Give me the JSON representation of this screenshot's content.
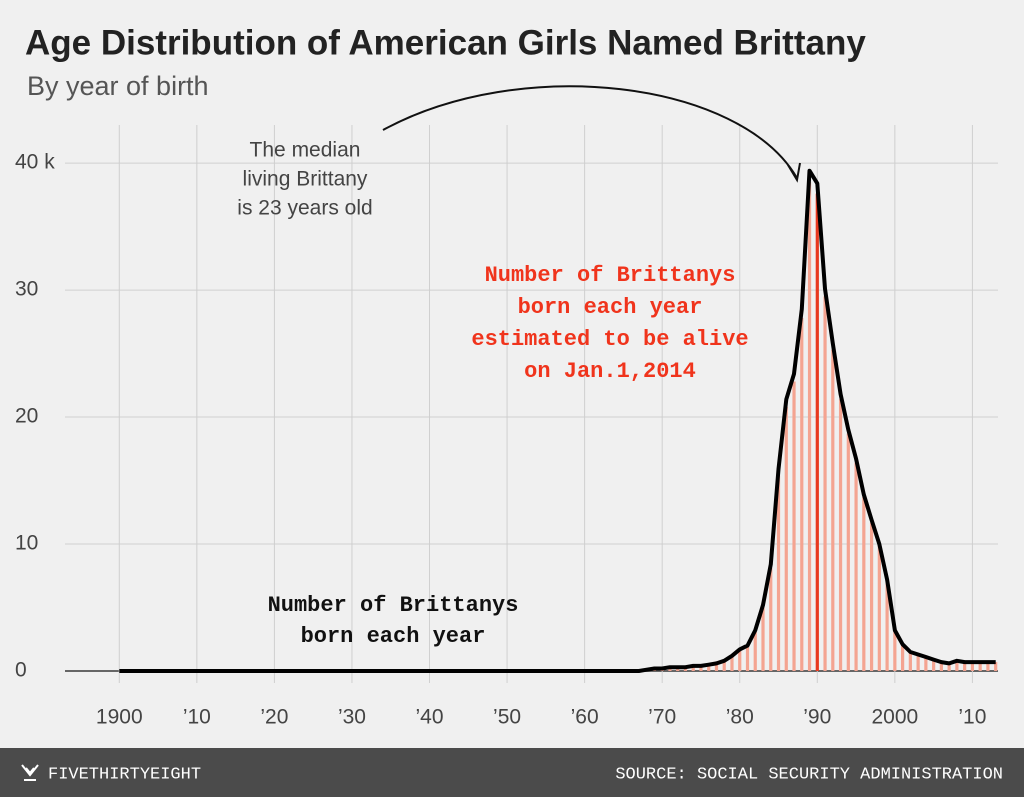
{
  "chart_data": {
    "type": "line-bar",
    "title": "Age Distribution of American Girls Named Brittany",
    "subtitle": "By year of birth",
    "x": [
      1900,
      1967,
      1968,
      1969,
      1970,
      1971,
      1972,
      1973,
      1974,
      1975,
      1976,
      1977,
      1978,
      1979,
      1980,
      1981,
      1982,
      1983,
      1984,
      1985,
      1986,
      1987,
      1988,
      1989,
      1990,
      1991,
      1992,
      1993,
      1994,
      1995,
      1996,
      1997,
      1998,
      1999,
      2000,
      2001,
      2002,
      2003,
      2004,
      2005,
      2006,
      2007,
      2008,
      2009,
      2010,
      2011,
      2012,
      2013
    ],
    "series": [
      {
        "name": "Number of Brittanys born each year",
        "color": "#000000",
        "values": [
          0,
          0,
          0.1,
          0.2,
          0.2,
          0.3,
          0.3,
          0.3,
          0.4,
          0.4,
          0.5,
          0.6,
          0.8,
          1.2,
          1.7,
          2.0,
          3.2,
          5.2,
          8.4,
          15.9,
          21.4,
          23.4,
          28.5,
          39.4,
          38.4,
          30.1,
          25.8,
          21.8,
          19.0,
          16.7,
          13.9,
          11.9,
          10.0,
          7.2,
          3.2,
          2.1,
          1.5,
          1.3,
          1.1,
          0.9,
          0.7,
          0.6,
          0.8,
          0.7,
          0.7,
          0.7,
          0.7,
          0.7
        ]
      },
      {
        "name": "Number of Brittanys born each year estimated to be alive on Jan.1,2014",
        "color": "#f4a491",
        "values": [
          0,
          0,
          0.1,
          0.2,
          0.2,
          0.3,
          0.3,
          0.3,
          0.4,
          0.4,
          0.5,
          0.6,
          0.8,
          1.1,
          1.6,
          1.9,
          3.1,
          5.0,
          8.1,
          15.4,
          20.8,
          22.8,
          27.8,
          38.5,
          37.6,
          29.5,
          25.3,
          21.4,
          18.7,
          16.4,
          13.7,
          11.7,
          9.9,
          7.1,
          3.2,
          2.1,
          1.5,
          1.3,
          1.1,
          0.9,
          0.7,
          0.6,
          0.8,
          0.7,
          0.7,
          0.7,
          0.7,
          0.7
        ]
      }
    ],
    "highlight": {
      "x": 1990,
      "color": "#e8391f"
    },
    "xlim": [
      1893,
      2013.3
    ],
    "xticks": [
      {
        "value": 1900,
        "label": "1900"
      },
      {
        "value": 1910,
        "label": "’10"
      },
      {
        "value": 1920,
        "label": "’20"
      },
      {
        "value": 1930,
        "label": "’30"
      },
      {
        "value": 1940,
        "label": "’40"
      },
      {
        "value": 1950,
        "label": "’50"
      },
      {
        "value": 1960,
        "label": "’60"
      },
      {
        "value": 1970,
        "label": "’70"
      },
      {
        "value": 1980,
        "label": "’80"
      },
      {
        "value": 1990,
        "label": "’90"
      },
      {
        "value": 2000,
        "label": "2000"
      },
      {
        "value": 2010,
        "label": "’10"
      }
    ],
    "ylim": [
      0,
      43
    ],
    "yticks": [
      0,
      10,
      20,
      30,
      {
        "value": 40,
        "label": "40 k"
      }
    ],
    "grid": true,
    "annotations": [
      {
        "lines": [
          "The median",
          "living Brittany",
          "is 23 years old"
        ]
      },
      {
        "lines": [
          "Number of Brittanys",
          "born each year",
          "estimated to be alive",
          "on Jan.1,2014"
        ]
      },
      {
        "lines": [
          "Number of Brittanys",
          "born each year"
        ]
      }
    ],
    "footer": {
      "brand": "FIVETHIRTYEIGHT",
      "source": "SOURCE: SOCIAL SECURITY ADMINISTRATION"
    }
  }
}
